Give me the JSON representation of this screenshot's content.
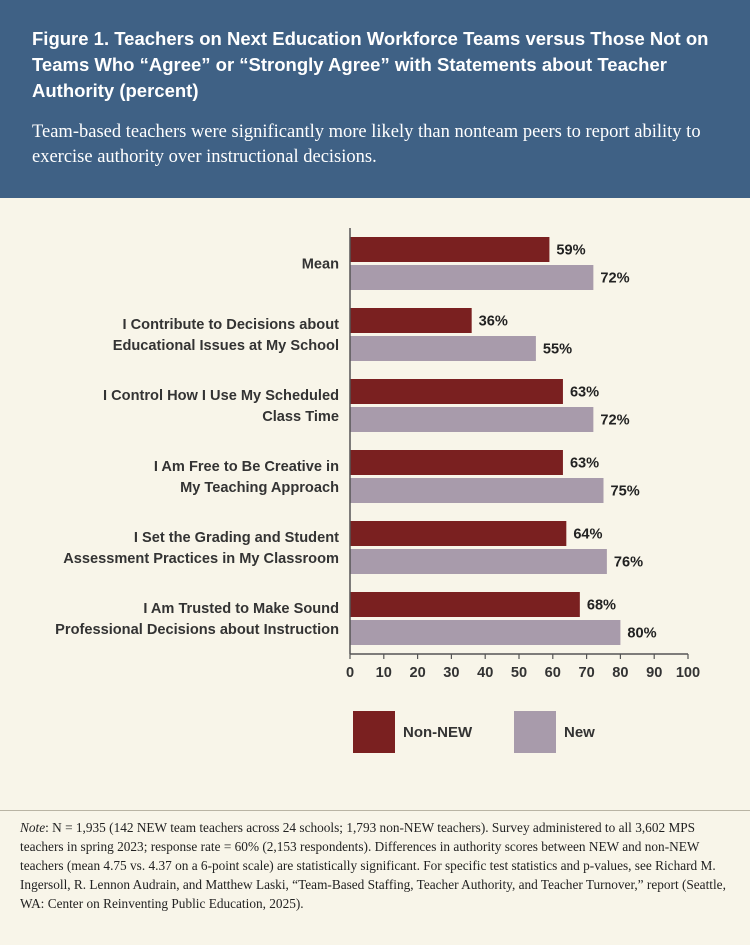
{
  "header": {
    "title": "Figure 1. Teachers on Next Education Workforce Teams versus Those Not on Teams Who “Agree” or “Strongly Agree” with Statements about Teacher Authority (percent)",
    "subtitle": "Team-based teachers were significantly more likely than nonteam peers to report ability to exercise authority over instructional decisions."
  },
  "colors": {
    "header_bg": "#3f6185",
    "background": "#f8f5e9",
    "non_new": "#7a2020",
    "new": "#a89bab",
    "axis": "#555555"
  },
  "chart_data": {
    "type": "bar",
    "orientation": "horizontal",
    "categories": [
      [
        "Mean"
      ],
      [
        "I Contribute to Decisions about",
        "Educational Issues at My School"
      ],
      [
        "I Control How I Use My Scheduled",
        "Class Time"
      ],
      [
        "I Am Free to Be Creative in",
        "My Teaching Approach"
      ],
      [
        "I Set the Grading and Student",
        "Assessment Practices in My Classroom"
      ],
      [
        "I Am Trusted to Make Sound",
        "Professional Decisions about Instruction"
      ]
    ],
    "series": [
      {
        "name": "Non-NEW",
        "values": [
          59,
          36,
          63,
          63,
          64,
          68
        ],
        "labels": [
          "59%",
          "36%",
          "63%",
          "63%",
          "64%",
          "68%"
        ]
      },
      {
        "name": "New",
        "values": [
          72,
          55,
          72,
          75,
          76,
          80
        ],
        "labels": [
          "72%",
          "55%",
          "72%",
          "75%",
          "76%",
          "80%"
        ]
      }
    ],
    "xlim": [
      0,
      100
    ],
    "xticks": [
      "0",
      "10",
      "20",
      "30",
      "40",
      "50",
      "60",
      "70",
      "80",
      "90",
      "100"
    ],
    "legend": [
      "Non-NEW",
      "New"
    ],
    "legend_position": "bottom"
  },
  "note": {
    "label": "Note",
    "text": ": N = 1,935 (142 NEW team teachers across 24 schools; 1,793 non-NEW teachers). Survey administered to all 3,602 MPS teachers in spring 2023; response rate = 60% (2,153 respondents). Differences in authority scores between NEW and non-NEW teachers (mean 4.75 vs. 4.37 on a 6-point scale) are statistically significant. For specific test statistics and p-values, see Richard M. Ingersoll, R. Lennon Audrain, and Matthew Laski, “Team-Based Staffing, Teacher Authority, and Teacher Turnover,” report (Seattle, WA: Center on Reinventing Public Education, 2025)."
  }
}
